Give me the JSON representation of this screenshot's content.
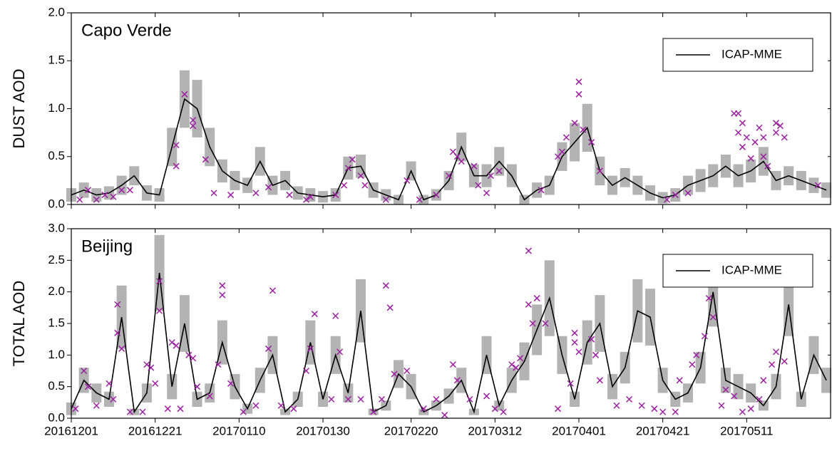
{
  "chart_data": [
    {
      "type": "line",
      "title": "Capo Verde",
      "y_label": "DUST AOD",
      "legend": "upper right",
      "ylim": [
        0,
        2
      ],
      "yticks": [
        {
          "value": 0,
          "label": "0.0"
        },
        {
          "value": 0.5,
          "label": "0.5"
        },
        {
          "value": 1,
          "label": "1.0"
        },
        {
          "value": 1.5,
          "label": "1.5"
        },
        {
          "value": 2,
          "label": "2.0"
        }
      ],
      "xlim": [
        0,
        181
      ],
      "x": [
        0,
        3,
        6,
        9,
        12,
        15,
        18,
        21,
        24,
        27,
        30,
        33,
        36,
        39,
        42,
        45,
        48,
        51,
        54,
        57,
        60,
        63,
        66,
        69,
        72,
        75,
        78,
        81,
        84,
        87,
        90,
        93,
        96,
        99,
        102,
        105,
        108,
        111,
        114,
        117,
        120,
        123,
        126,
        129,
        132,
        135,
        138,
        141,
        144,
        147,
        150,
        153,
        156,
        159,
        162,
        165,
        168,
        171,
        174,
        177,
        180
      ],
      "series": [
        {
          "name": "ICAP-MME",
          "color": "#000000",
          "band_color": "#b3b3b3",
          "values": [
            0.1,
            0.15,
            0.1,
            0.12,
            0.2,
            0.3,
            0.12,
            0.1,
            0.6,
            1.1,
            1.0,
            0.6,
            0.35,
            0.25,
            0.2,
            0.45,
            0.2,
            0.25,
            0.12,
            0.1,
            0.08,
            0.1,
            0.38,
            0.4,
            0.15,
            0.1,
            0.05,
            0.35,
            0.05,
            0.1,
            0.25,
            0.6,
            0.3,
            0.3,
            0.45,
            0.3,
            0.05,
            0.15,
            0.2,
            0.5,
            0.65,
            0.8,
            0.35,
            0.2,
            0.28,
            0.2,
            0.12,
            0.07,
            0.1,
            0.2,
            0.25,
            0.3,
            0.4,
            0.3,
            0.35,
            0.45,
            0.25,
            0.3,
            0.25,
            0.2,
            0.15
          ],
          "spread": [
            0.07,
            0.08,
            0.07,
            0.07,
            0.1,
            0.1,
            0.08,
            0.07,
            0.2,
            0.3,
            0.3,
            0.2,
            0.12,
            0.1,
            0.08,
            0.15,
            0.1,
            0.1,
            0.07,
            0.07,
            0.06,
            0.07,
            0.12,
            0.12,
            0.08,
            0.06,
            0.05,
            0.1,
            0.05,
            0.06,
            0.1,
            0.15,
            0.12,
            0.12,
            0.15,
            0.12,
            0.05,
            0.08,
            0.1,
            0.15,
            0.2,
            0.25,
            0.15,
            0.1,
            0.1,
            0.1,
            0.08,
            0.06,
            0.07,
            0.1,
            0.12,
            0.12,
            0.12,
            0.12,
            0.12,
            0.15,
            0.1,
            0.1,
            0.1,
            0.08,
            0.08
          ]
        }
      ],
      "observations": {
        "color": "#9b1fa0",
        "x": [
          2,
          4,
          6,
          8,
          10,
          12,
          14,
          25,
          25,
          27,
          29,
          29,
          32,
          34,
          38,
          44,
          47,
          52,
          56,
          57,
          63,
          65,
          66,
          67,
          69,
          70,
          75,
          80,
          83,
          87,
          90,
          91,
          92,
          93,
          96,
          97,
          99,
          100,
          102,
          112,
          116,
          117,
          118,
          120,
          121,
          121,
          122,
          124,
          126,
          142,
          144,
          147,
          158,
          159,
          159,
          160,
          160,
          161,
          162,
          163,
          164,
          165,
          165,
          166,
          168,
          168,
          169,
          170,
          178
        ],
        "values": [
          0.05,
          0.15,
          0.05,
          0.1,
          0.08,
          0.15,
          0.15,
          0.4,
          0.62,
          1.15,
          0.88,
          0.82,
          0.47,
          0.12,
          0.1,
          0.12,
          0.18,
          0.1,
          0.05,
          0.08,
          0.1,
          0.2,
          0.38,
          0.47,
          0.3,
          0.2,
          0.05,
          0.25,
          0.05,
          0.1,
          0.3,
          0.55,
          0.5,
          0.45,
          0.4,
          0.2,
          0.12,
          0.3,
          0.35,
          0.15,
          0.5,
          0.55,
          0.7,
          0.85,
          1.15,
          1.28,
          0.78,
          0.65,
          0.35,
          0.05,
          0.1,
          0.12,
          0.95,
          0.95,
          0.75,
          0.85,
          0.6,
          0.7,
          0.48,
          0.65,
          0.8,
          0.7,
          0.5,
          0.4,
          0.85,
          0.75,
          0.82,
          0.7,
          0.2
        ]
      }
    },
    {
      "type": "line",
      "title": "Beijing",
      "y_label": "TOTAL AOD",
      "legend": "upper right",
      "ylim": [
        0,
        3
      ],
      "yticks": [
        {
          "value": 0,
          "label": "0.0"
        },
        {
          "value": 0.5,
          "label": "0.5"
        },
        {
          "value": 1,
          "label": "1.0"
        },
        {
          "value": 1.5,
          "label": "1.5"
        },
        {
          "value": 2,
          "label": "2.0"
        },
        {
          "value": 2.5,
          "label": "2.5"
        },
        {
          "value": 3,
          "label": "3.0"
        }
      ],
      "xlim": [
        0,
        181
      ],
      "xticks": [
        {
          "value": 0,
          "label": "20161201"
        },
        {
          "value": 20,
          "label": "20161221"
        },
        {
          "value": 40,
          "label": "20170110"
        },
        {
          "value": 60,
          "label": "20170130"
        },
        {
          "value": 81,
          "label": "20170220"
        },
        {
          "value": 101,
          "label": "20170312"
        },
        {
          "value": 121,
          "label": "20170401"
        },
        {
          "value": 141,
          "label": "20170421"
        },
        {
          "value": 161,
          "label": "20170511"
        }
      ],
      "x": [
        0,
        3,
        6,
        9,
        12,
        15,
        18,
        21,
        24,
        27,
        30,
        33,
        36,
        39,
        42,
        45,
        48,
        51,
        54,
        57,
        60,
        63,
        66,
        69,
        72,
        75,
        78,
        81,
        84,
        87,
        90,
        93,
        96,
        99,
        102,
        105,
        108,
        111,
        114,
        117,
        120,
        123,
        126,
        129,
        132,
        135,
        138,
        141,
        144,
        147,
        150,
        153,
        156,
        159,
        162,
        165,
        168,
        171,
        174,
        177,
        180
      ],
      "series": [
        {
          "name": "ICAP-MME",
          "color": "#000000",
          "band_color": "#b3b3b3",
          "values": [
            0.15,
            0.6,
            0.4,
            0.3,
            1.6,
            0.1,
            0.4,
            2.3,
            0.5,
            1.5,
            0.3,
            0.4,
            1.2,
            0.5,
            0.15,
            0.6,
            1.0,
            0.1,
            0.3,
            1.2,
            0.3,
            1.0,
            0.4,
            1.7,
            0.1,
            0.2,
            0.7,
            0.5,
            0.1,
            0.2,
            0.35,
            0.6,
            0.1,
            1.0,
            0.2,
            0.6,
            0.9,
            1.4,
            1.9,
            1.0,
            0.3,
            1.2,
            1.5,
            0.5,
            0.8,
            1.7,
            1.6,
            0.6,
            0.3,
            0.4,
            0.8,
            2.0,
            0.6,
            0.5,
            0.4,
            0.2,
            0.5,
            1.8,
            0.3,
            1.0,
            0.6
          ],
          "spread": [
            0.1,
            0.2,
            0.15,
            0.12,
            0.5,
            0.05,
            0.15,
            0.6,
            0.2,
            0.45,
            0.12,
            0.15,
            0.35,
            0.2,
            0.08,
            0.2,
            0.3,
            0.05,
            0.12,
            0.35,
            0.12,
            0.3,
            0.15,
            0.5,
            0.05,
            0.08,
            0.22,
            0.2,
            0.05,
            0.08,
            0.12,
            0.2,
            0.05,
            0.3,
            0.08,
            0.2,
            0.3,
            0.4,
            0.6,
            0.3,
            0.12,
            0.35,
            0.45,
            0.2,
            0.25,
            0.5,
            0.45,
            0.2,
            0.12,
            0.15,
            0.25,
            0.55,
            0.2,
            0.2,
            0.15,
            0.08,
            0.2,
            0.5,
            0.12,
            0.3,
            0.2
          ]
        }
      ],
      "observations": {
        "color": "#9b1fa0",
        "x": [
          1,
          3,
          4,
          6,
          9,
          10,
          11,
          11,
          12,
          14,
          17,
          18,
          19,
          20,
          21,
          21,
          23,
          24,
          25,
          26,
          28,
          29,
          30,
          33,
          35,
          36,
          36,
          38,
          41,
          44,
          47,
          48,
          50,
          53,
          56,
          57,
          58,
          62,
          63,
          64,
          66,
          69,
          72,
          74,
          75,
          76,
          77,
          80,
          84,
          87,
          89,
          91,
          92,
          95,
          99,
          101,
          103,
          105,
          106,
          107,
          109,
          109,
          110,
          111,
          113,
          116,
          119,
          120,
          120,
          121,
          124,
          125,
          126,
          130,
          133,
          136,
          139,
          141,
          144,
          145,
          148,
          149,
          151,
          152,
          153,
          155,
          156,
          158,
          160,
          162,
          164,
          165,
          167,
          168,
          170
        ],
        "values": [
          0.15,
          0.75,
          0.5,
          0.2,
          0.55,
          0.3,
          1.8,
          1.35,
          1.1,
          0.1,
          0.1,
          0.85,
          0.8,
          0.55,
          2.17,
          1.7,
          0.15,
          1.2,
          1.15,
          0.15,
          1.0,
          0.95,
          0.5,
          0.35,
          0.85,
          2.1,
          1.95,
          0.55,
          0.1,
          0.2,
          1.1,
          2.02,
          0.2,
          0.15,
          0.75,
          1.1,
          1.65,
          0.3,
          1.62,
          1.05,
          0.3,
          0.3,
          0.1,
          0.3,
          2.1,
          1.75,
          0.7,
          0.75,
          0.15,
          0.3,
          0.05,
          0.85,
          0.6,
          0.3,
          0.35,
          0.15,
          0.1,
          0.85,
          0.8,
          0.95,
          1.8,
          2.65,
          1.5,
          1.9,
          1.5,
          0.15,
          0.55,
          1.2,
          1.35,
          1.05,
          1.25,
          1.0,
          0.6,
          0.2,
          0.3,
          0.2,
          0.15,
          0.1,
          0.1,
          0.6,
          0.85,
          1.0,
          1.3,
          1.9,
          1.6,
          0.2,
          0.45,
          0.35,
          0.1,
          0.15,
          0.3,
          0.6,
          0.85,
          1.05,
          0.9
        ]
      }
    }
  ]
}
